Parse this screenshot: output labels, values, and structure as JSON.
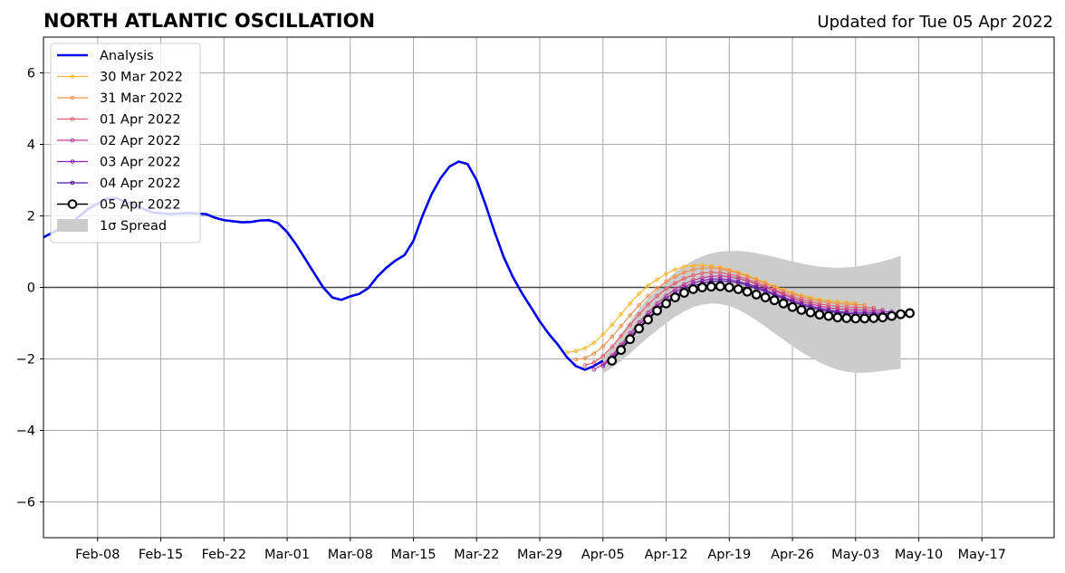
{
  "chart_data": {
    "type": "line",
    "title": "NORTH ATLANTIC OSCILLATION",
    "subtitle": "Updated for Tue 05 Apr 2022",
    "xlabel": "",
    "ylabel": "",
    "x_axis": "date",
    "xlim": [
      "2022-02-02",
      "2022-05-25"
    ],
    "ylim": [
      -7,
      7
    ],
    "xticks": [
      {
        "date": "2022-02-08",
        "label": "Feb-08"
      },
      {
        "date": "2022-02-15",
        "label": "Feb-15"
      },
      {
        "date": "2022-02-22",
        "label": "Feb-22"
      },
      {
        "date": "2022-03-01",
        "label": "Mar-01"
      },
      {
        "date": "2022-03-08",
        "label": "Mar-08"
      },
      {
        "date": "2022-03-15",
        "label": "Mar-15"
      },
      {
        "date": "2022-03-22",
        "label": "Mar-22"
      },
      {
        "date": "2022-03-29",
        "label": "Mar-29"
      },
      {
        "date": "2022-04-05",
        "label": "Apr-05"
      },
      {
        "date": "2022-04-12",
        "label": "Apr-12"
      },
      {
        "date": "2022-04-19",
        "label": "Apr-19"
      },
      {
        "date": "2022-04-26",
        "label": "Apr-26"
      },
      {
        "date": "2022-05-03",
        "label": "May-03"
      },
      {
        "date": "2022-05-10",
        "label": "May-10"
      },
      {
        "date": "2022-05-17",
        "label": "May-17"
      }
    ],
    "yticks": [
      {
        "value": -6,
        "label": "−6"
      },
      {
        "value": -4,
        "label": "−4"
      },
      {
        "value": -2,
        "label": "−2"
      },
      {
        "value": 0,
        "label": "0"
      },
      {
        "value": 2,
        "label": "2"
      },
      {
        "value": 4,
        "label": "4"
      },
      {
        "value": 6,
        "label": "6"
      }
    ],
    "grid": true,
    "legend_position": "top-left",
    "analysis": {
      "name": "Analysis",
      "color": "#0000ee",
      "points": [
        [
          "2022-02-02",
          1.4
        ],
        [
          "2022-02-05",
          1.8
        ],
        [
          "2022-02-07",
          2.2
        ],
        [
          "2022-02-09",
          2.48
        ],
        [
          "2022-02-10",
          2.5
        ],
        [
          "2022-02-12",
          2.3
        ],
        [
          "2022-02-14",
          2.1
        ],
        [
          "2022-02-16",
          2.05
        ],
        [
          "2022-02-18",
          2.08
        ],
        [
          "2022-02-20",
          2.05
        ],
        [
          "2022-02-21",
          1.95
        ],
        [
          "2022-02-22",
          1.88
        ],
        [
          "2022-02-23",
          1.85
        ],
        [
          "2022-02-24",
          1.82
        ],
        [
          "2022-02-25",
          1.83
        ],
        [
          "2022-02-26",
          1.87
        ],
        [
          "2022-02-27",
          1.88
        ],
        [
          "2022-02-28",
          1.8
        ],
        [
          "2022-03-01",
          1.55
        ],
        [
          "2022-03-02",
          1.2
        ],
        [
          "2022-03-03",
          0.8
        ],
        [
          "2022-03-04",
          0.4
        ],
        [
          "2022-03-05",
          0.0
        ],
        [
          "2022-03-06",
          -0.28
        ],
        [
          "2022-03-07",
          -0.35
        ],
        [
          "2022-03-08",
          -0.25
        ],
        [
          "2022-03-09",
          -0.18
        ],
        [
          "2022-03-10",
          -0.02
        ],
        [
          "2022-03-11",
          0.3
        ],
        [
          "2022-03-12",
          0.55
        ],
        [
          "2022-03-13",
          0.75
        ],
        [
          "2022-03-14",
          0.9
        ],
        [
          "2022-03-15",
          1.3
        ],
        [
          "2022-03-16",
          2.0
        ],
        [
          "2022-03-17",
          2.6
        ],
        [
          "2022-03-18",
          3.05
        ],
        [
          "2022-03-19",
          3.38
        ],
        [
          "2022-03-20",
          3.52
        ],
        [
          "2022-03-21",
          3.45
        ],
        [
          "2022-03-22",
          3.0
        ],
        [
          "2022-03-23",
          2.3
        ],
        [
          "2022-03-24",
          1.55
        ],
        [
          "2022-03-25",
          0.85
        ],
        [
          "2022-03-26",
          0.3
        ],
        [
          "2022-03-27",
          -0.15
        ],
        [
          "2022-03-28",
          -0.55
        ],
        [
          "2022-03-29",
          -0.95
        ],
        [
          "2022-03-30",
          -1.3
        ],
        [
          "2022-03-31",
          -1.6
        ],
        [
          "2022-04-01",
          -1.95
        ],
        [
          "2022-04-02",
          -2.2
        ],
        [
          "2022-04-03",
          -2.3
        ],
        [
          "2022-04-04",
          -2.2
        ],
        [
          "2022-04-05",
          -2.05
        ]
      ]
    },
    "forecasts": [
      {
        "name": "30 Mar 2022",
        "color": "#f8b830",
        "start": "2022-04-01",
        "values": [
          -1.82,
          -1.78,
          -1.7,
          -1.55,
          -1.32,
          -1.05,
          -0.75,
          -0.45,
          -0.18,
          0.05,
          0.22,
          0.38,
          0.5,
          0.58,
          0.61,
          0.62,
          0.6,
          0.56,
          0.5,
          0.42,
          0.34,
          0.24,
          0.14,
          0.04,
          -0.06,
          -0.15,
          -0.22,
          -0.28,
          -0.33,
          -0.37,
          -0.4,
          -0.42,
          -0.44
        ]
      },
      {
        "name": "31 Mar 2022",
        "color": "#f09050",
        "start": "2022-04-02",
        "values": [
          -2.02,
          -1.98,
          -1.85,
          -1.65,
          -1.38,
          -1.08,
          -0.78,
          -0.5,
          -0.24,
          -0.02,
          0.16,
          0.3,
          0.42,
          0.5,
          0.54,
          0.55,
          0.52,
          0.47,
          0.4,
          0.31,
          0.21,
          0.11,
          0.01,
          -0.09,
          -0.18,
          -0.26,
          -0.33,
          -0.38,
          -0.42,
          -0.45,
          -0.47,
          -0.48,
          -0.49
        ]
      },
      {
        "name": "01 Apr 2022",
        "color": "#e06070",
        "start": "2022-04-03",
        "values": [
          -2.18,
          -2.1,
          -1.92,
          -1.66,
          -1.36,
          -1.05,
          -0.75,
          -0.48,
          -0.24,
          -0.04,
          0.12,
          0.25,
          0.34,
          0.4,
          0.42,
          0.41,
          0.37,
          0.31,
          0.23,
          0.14,
          0.04,
          -0.06,
          -0.16,
          -0.25,
          -0.33,
          -0.4,
          -0.46,
          -0.5,
          -0.53,
          -0.55,
          -0.56,
          -0.57,
          -0.57
        ]
      },
      {
        "name": "02 Apr 2022",
        "color": "#c04090",
        "start": "2022-04-04",
        "values": [
          -2.3,
          -2.15,
          -1.9,
          -1.6,
          -1.28,
          -0.98,
          -0.7,
          -0.45,
          -0.23,
          -0.05,
          0.09,
          0.2,
          0.27,
          0.31,
          0.32,
          0.3,
          0.25,
          0.18,
          0.09,
          0.0,
          -0.1,
          -0.2,
          -0.3,
          -0.39,
          -0.46,
          -0.52,
          -0.57,
          -0.6,
          -0.62,
          -0.63,
          -0.64,
          -0.64,
          -0.63
        ]
      },
      {
        "name": "03 Apr 2022",
        "color": "#8820b0",
        "start": "2022-04-05",
        "values": [
          -2.2,
          -1.95,
          -1.66,
          -1.36,
          -1.06,
          -0.78,
          -0.53,
          -0.31,
          -0.13,
          0.01,
          0.12,
          0.19,
          0.23,
          0.24,
          0.22,
          0.17,
          0.1,
          0.02,
          -0.07,
          -0.17,
          -0.27,
          -0.36,
          -0.45,
          -0.52,
          -0.58,
          -0.63,
          -0.67,
          -0.69,
          -0.7,
          -0.7,
          -0.7,
          -0.69,
          -0.68
        ]
      },
      {
        "name": "04 Apr 2022",
        "color": "#5010a0",
        "start": "2022-04-06",
        "values": [
          -2.0,
          -1.72,
          -1.42,
          -1.13,
          -0.86,
          -0.61,
          -0.4,
          -0.22,
          -0.07,
          0.04,
          0.12,
          0.17,
          0.18,
          0.17,
          0.13,
          0.06,
          -0.02,
          -0.11,
          -0.21,
          -0.31,
          -0.4,
          -0.49,
          -0.56,
          -0.62,
          -0.67,
          -0.71,
          -0.73,
          -0.75,
          -0.75,
          -0.75,
          -0.74,
          -0.73,
          -0.72
        ]
      }
    ],
    "latest_forecast": {
      "name": "05 Apr 2022",
      "color": "#000000",
      "marker_fill": "#ffffff",
      "start": "2022-04-06",
      "values": [
        -2.05,
        -1.75,
        -1.45,
        -1.15,
        -0.9,
        -0.65,
        -0.45,
        -0.28,
        -0.15,
        -0.05,
        0.0,
        0.02,
        0.03,
        0.0,
        -0.05,
        -0.12,
        -0.2,
        -0.28,
        -0.36,
        -0.45,
        -0.55,
        -0.63,
        -0.7,
        -0.76,
        -0.8,
        -0.84,
        -0.86,
        -0.87,
        -0.87,
        -0.86,
        -0.84,
        -0.8,
        -0.75,
        -0.72
      ]
    },
    "spread": {
      "name": "1σ Spread",
      "color": "#cccccc",
      "start": "2022-04-05",
      "upper": [
        -2.0,
        -1.65,
        -1.3,
        -0.95,
        -0.6,
        -0.3,
        -0.05,
        0.2,
        0.42,
        0.6,
        0.75,
        0.87,
        0.95,
        1.0,
        1.02,
        1.02,
        1.0,
        0.96,
        0.91,
        0.85,
        0.79,
        0.73,
        0.67,
        0.62,
        0.58,
        0.56,
        0.55,
        0.56,
        0.58,
        0.62,
        0.67,
        0.73,
        0.8,
        0.88
      ],
      "lower": [
        -2.4,
        -2.25,
        -2.05,
        -1.85,
        -1.62,
        -1.4,
        -1.2,
        -1.0,
        -0.82,
        -0.67,
        -0.55,
        -0.48,
        -0.45,
        -0.46,
        -0.52,
        -0.62,
        -0.76,
        -0.92,
        -1.1,
        -1.28,
        -1.46,
        -1.64,
        -1.81,
        -1.96,
        -2.1,
        -2.21,
        -2.3,
        -2.36,
        -2.39,
        -2.39,
        -2.37,
        -2.34,
        -2.3,
        -2.28
      ]
    }
  }
}
